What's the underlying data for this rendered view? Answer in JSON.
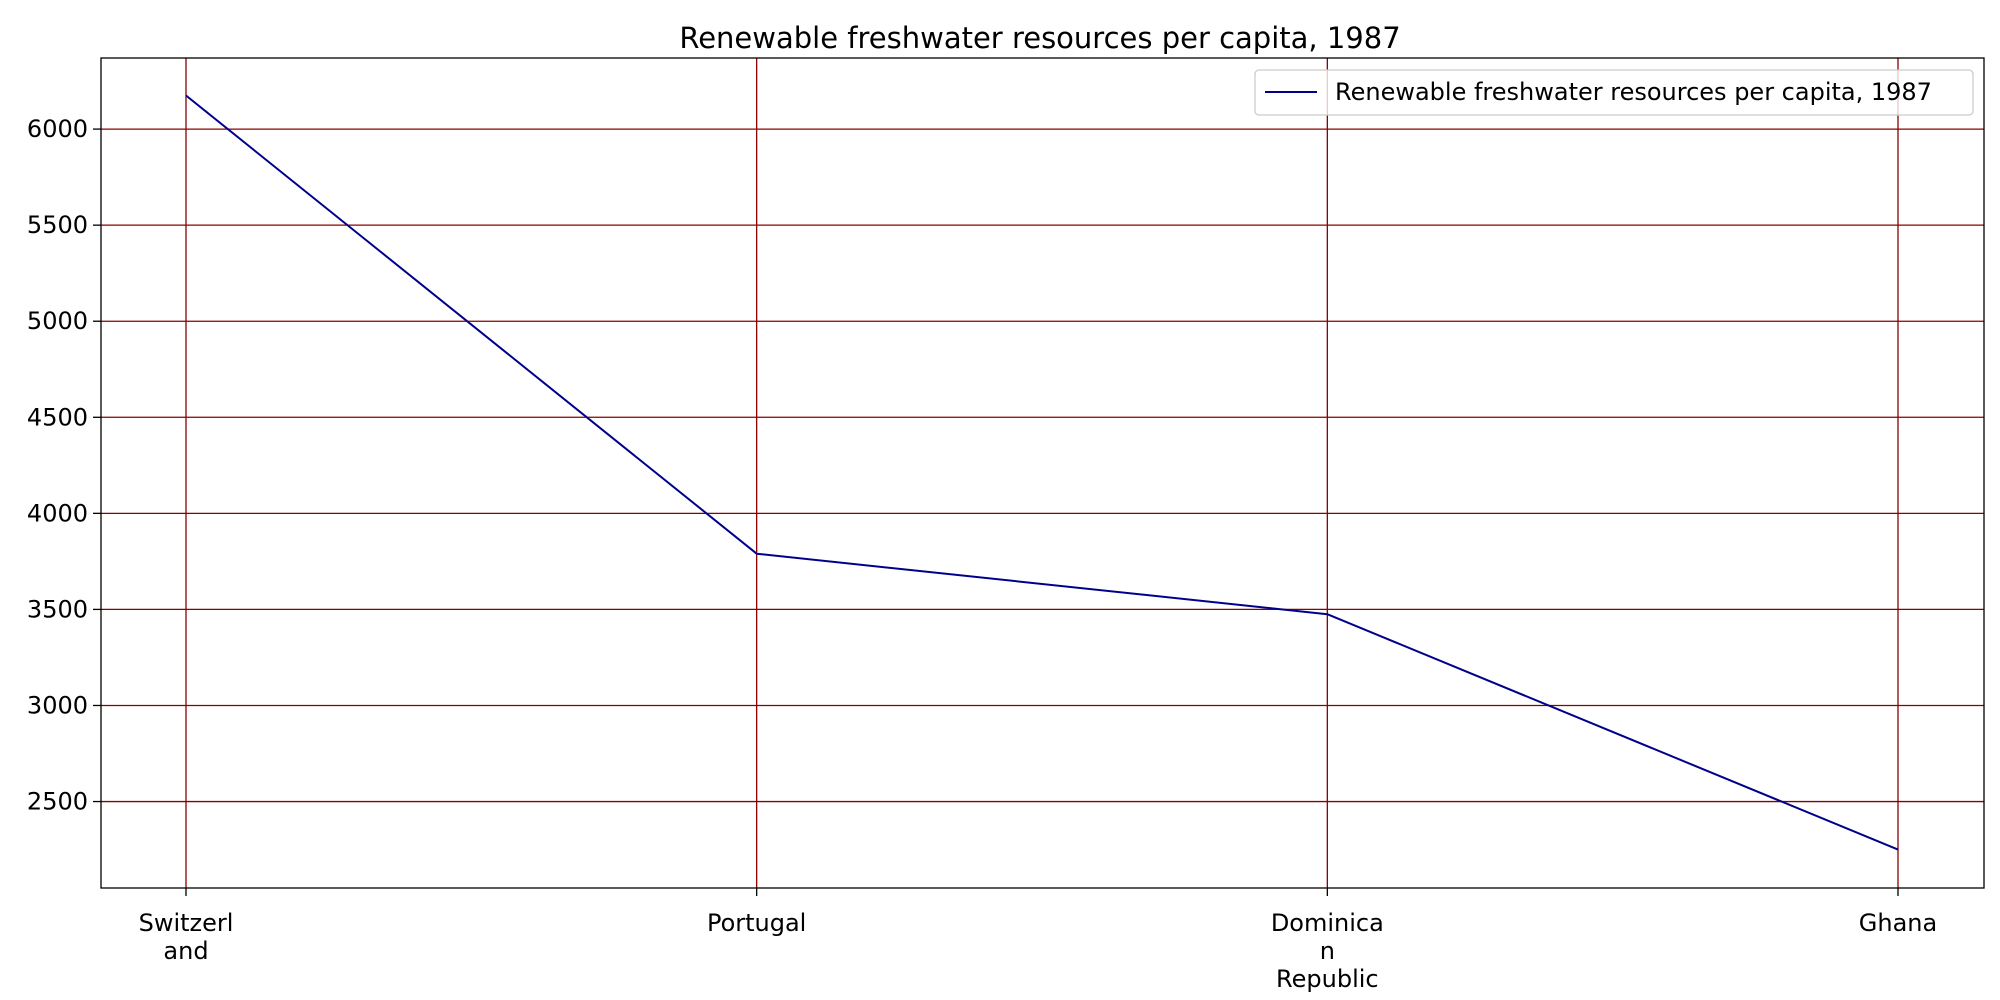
{
  "chart_data": {
    "type": "line",
    "title": "Renewable freshwater resources per capita, 1987",
    "xlabel": "",
    "ylabel": "",
    "categories": [
      "Switzerland",
      "Portugal",
      "Dominican Republic",
      "Ghana"
    ],
    "category_tick_lines": [
      [
        "Switzerl",
        "and"
      ],
      [
        "Portugal"
      ],
      [
        "Dominica",
        "n",
        "Republic"
      ],
      [
        "Ghana"
      ]
    ],
    "series": [
      {
        "name": "Renewable freshwater resources per capita, 1987",
        "values": [
          6175,
          3790,
          3475,
          2250
        ],
        "color": "#00008b"
      }
    ],
    "ylim": [
      2050,
      6370
    ],
    "yticks": [
      2500,
      3000,
      3500,
      4000,
      4500,
      5000,
      5500,
      6000
    ],
    "grid": true,
    "grid_color": "#8b0000",
    "legend_position": "top-right"
  }
}
